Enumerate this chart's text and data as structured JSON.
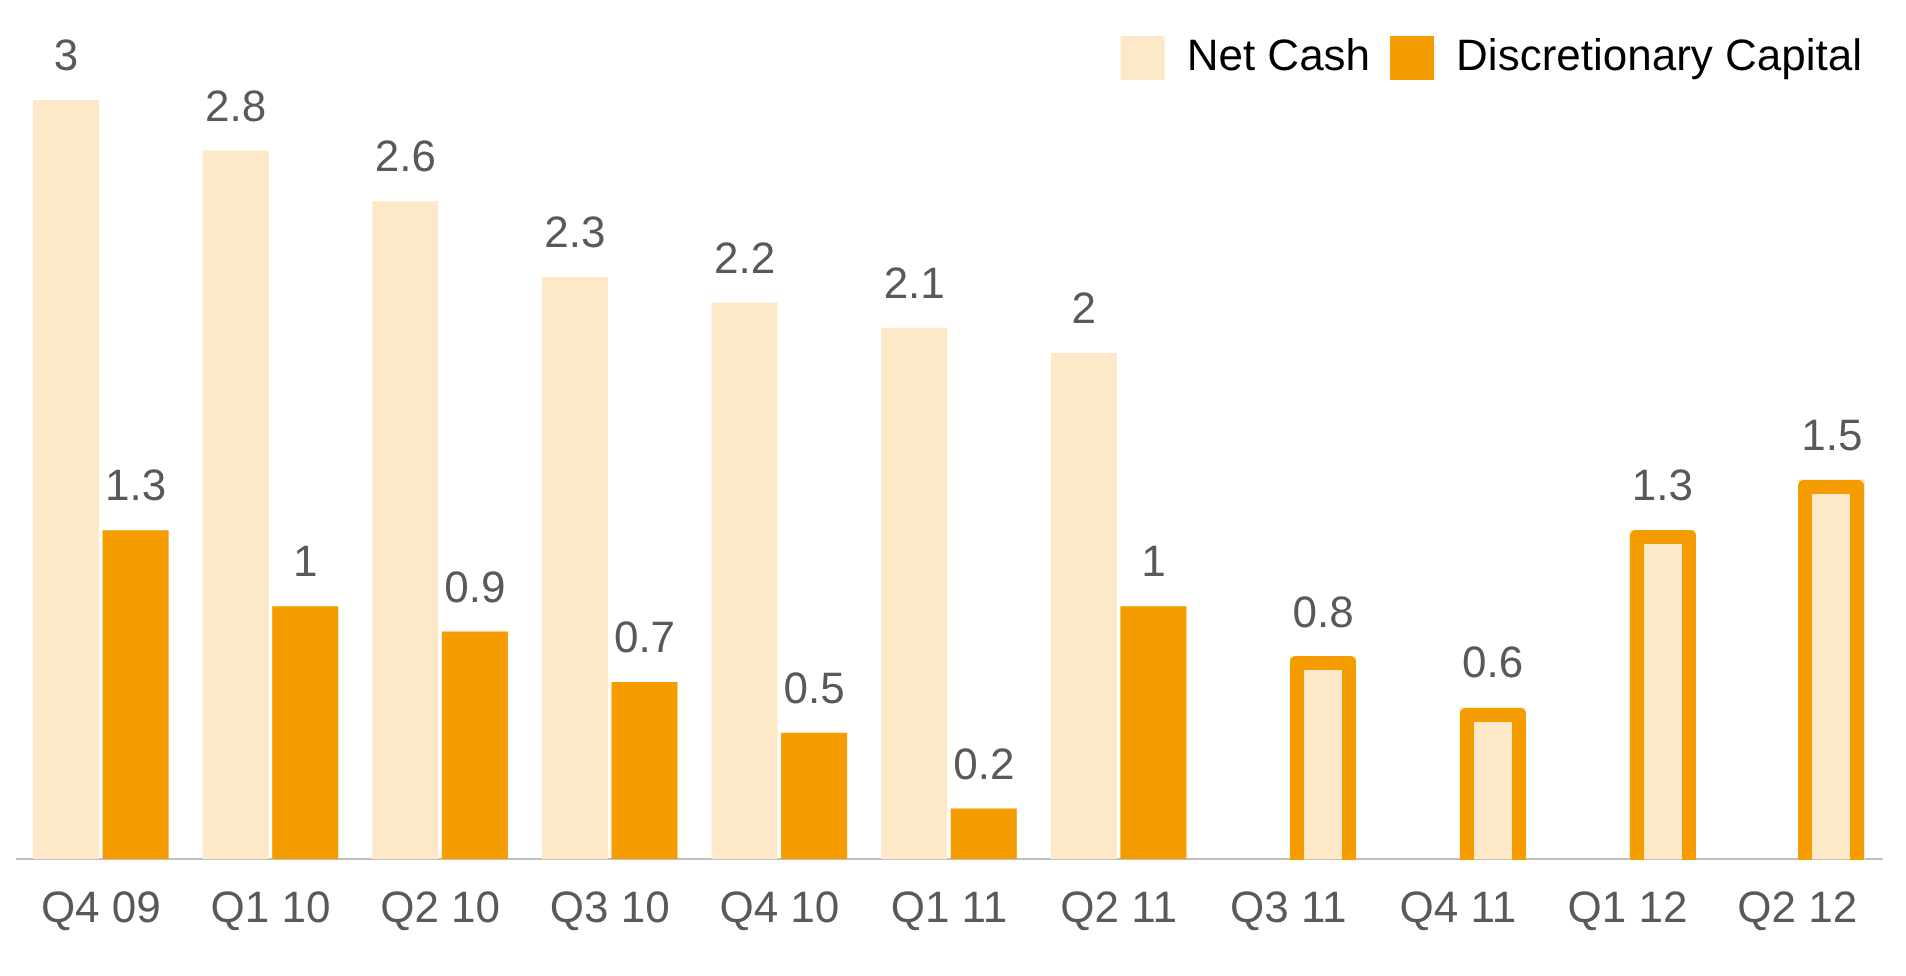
{
  "chart_data": {
    "type": "bar",
    "categories": [
      "Q4 09",
      "Q1 10",
      "Q2 10",
      "Q3 10",
      "Q4 10",
      "Q1 11",
      "Q2 11",
      "Q3 11",
      "Q4 11",
      "Q1 12",
      "Q2 12"
    ],
    "series": [
      {
        "name": "Net Cash",
        "color": "#fde9c8",
        "values": [
          3,
          2.8,
          2.6,
          2.3,
          2.2,
          2.1,
          2,
          null,
          null,
          null,
          null
        ]
      },
      {
        "name": "Discretionary Capital",
        "color": "#f59c00",
        "colors": [
          "#f59c00",
          "#f59c00",
          "#f59c00",
          "#f59c00",
          "#f59c00",
          "#f59c00",
          "#f59c00",
          "#fde9c8",
          "#fde9c8",
          "#fde9c8",
          "#fde9c8"
        ],
        "values": [
          1.3,
          1,
          0.9,
          0.7,
          0.5,
          0.2,
          1,
          0.8,
          0.6,
          1.3,
          1.5
        ]
      }
    ],
    "data_labels": true,
    "legend": "top right",
    "grid": false
  }
}
